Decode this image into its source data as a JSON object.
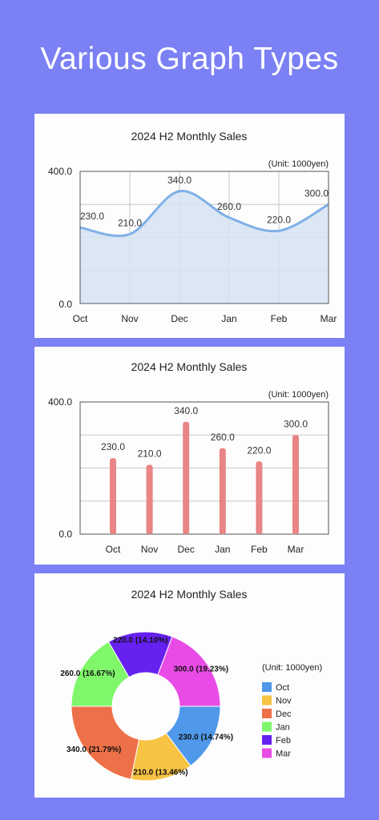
{
  "page": {
    "title": "Various Graph Types"
  },
  "chart_data": [
    {
      "type": "area",
      "title": "2024 H2 Monthly Sales",
      "unit_label": "(Unit: 1000yen)",
      "categories": [
        "Oct",
        "Nov",
        "Dec",
        "Jan",
        "Feb",
        "Mar"
      ],
      "values": [
        230.0,
        210.0,
        340.0,
        260.0,
        220.0,
        300.0
      ],
      "value_labels": [
        "230.0",
        "210.0",
        "340.0",
        "260.0",
        "220.0",
        "300.0"
      ],
      "ylim": [
        0,
        400
      ],
      "ytick_labels": [
        "0.0",
        "400.0"
      ],
      "grid": true,
      "line_color": "#7fb0e6",
      "fill_color": "#d6e3f5"
    },
    {
      "type": "bar",
      "title": "2024 H2 Monthly Sales",
      "unit_label": "(Unit: 1000yen)",
      "categories": [
        "Oct",
        "Nov",
        "Dec",
        "Jan",
        "Feb",
        "Mar"
      ],
      "values": [
        230.0,
        210.0,
        340.0,
        260.0,
        220.0,
        300.0
      ],
      "value_labels": [
        "230.0",
        "210.0",
        "340.0",
        "260.0",
        "220.0",
        "300.0"
      ],
      "ylim": [
        0,
        400
      ],
      "ytick_labels": [
        "0.0",
        "400.0"
      ],
      "grid": true,
      "bar_color": "#e98585"
    },
    {
      "type": "pie",
      "title": "2024 H2 Monthly Sales",
      "unit_label": "(Unit: 1000yen)",
      "categories": [
        "Oct",
        "Nov",
        "Dec",
        "Jan",
        "Feb",
        "Mar"
      ],
      "values": [
        230.0,
        210.0,
        340.0,
        260.0,
        220.0,
        300.0
      ],
      "slice_labels": [
        "230.0 (14.74%)",
        "210.0 (13.46%)",
        "340.0 (21.79%)",
        "260.0 (16.67%)",
        "220.0 (14.10%)",
        "300.0 (19.23%)"
      ],
      "colors": [
        "#4f98ea",
        "#f7c343",
        "#ee7048",
        "#80f76a",
        "#6621f0",
        "#e94ce6"
      ],
      "donut": true,
      "legend_position": "right"
    }
  ]
}
